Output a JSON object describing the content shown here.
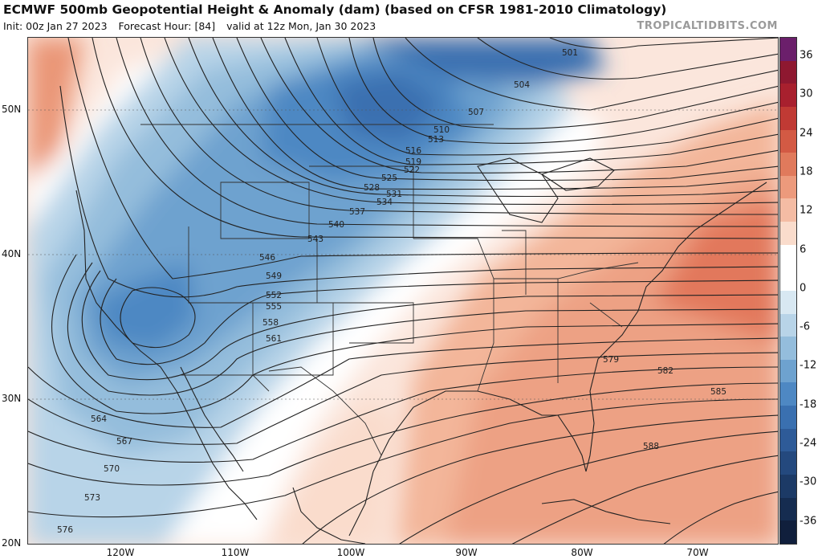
{
  "header": {
    "title": "ECMWF 500mb Geopotential Height & Anomaly (dam) (based on CFSR 1981-2010 Climatology)",
    "init": "Init: 00z Jan 27 2023",
    "forecast_hour": "Forecast Hour: [84]",
    "valid": "valid at 12z Mon, Jan 30 2023",
    "brand": "TROPICALTIDBITS.COM"
  },
  "axes": {
    "lat_labels": [
      "50N",
      "40N",
      "30N",
      "20N"
    ],
    "lon_labels": [
      "120W",
      "110W",
      "100W",
      "90W",
      "80W",
      "70W"
    ]
  },
  "colorbar": {
    "labels": [
      "36",
      "30",
      "24",
      "18",
      "12",
      "6",
      "0",
      "-6",
      "-12",
      "-18",
      "-24",
      "-30",
      "-36"
    ],
    "colors": [
      "#6b1f6b",
      "#8e1830",
      "#a8202e",
      "#c03a34",
      "#d35a44",
      "#e07a5c",
      "#ec9a7c",
      "#f4bca4",
      "#fadccc",
      "#ffffff",
      "#ffffff",
      "#d8e8f2",
      "#b8d4e8",
      "#94bddc",
      "#6ea2cf",
      "#4e88c3",
      "#3a70b0",
      "#2e5b98",
      "#24497e",
      "#1c3a66",
      "#152c50",
      "#101f3c"
    ]
  },
  "contour_labels": [
    "501",
    "504",
    "507",
    "510",
    "513",
    "516",
    "519",
    "522",
    "525",
    "528",
    "531",
    "534",
    "537",
    "540",
    "543",
    "546",
    "549",
    "552",
    "555",
    "558",
    "561",
    "564",
    "567",
    "570",
    "573",
    "576",
    "579",
    "582",
    "585",
    "588"
  ]
}
